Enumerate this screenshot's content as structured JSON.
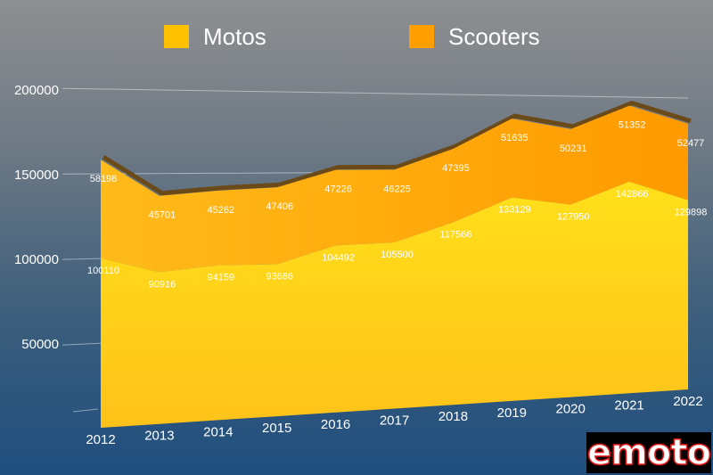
{
  "chart_data": {
    "type": "area",
    "stacked": true,
    "categories": [
      "2012",
      "2013",
      "2014",
      "2015",
      "2016",
      "2017",
      "2018",
      "2019",
      "2020",
      "2021",
      "2022"
    ],
    "series": [
      {
        "name": "Motos",
        "color": "#ffcc00",
        "values": [
          100110,
          90916,
          94159,
          93686,
          104492,
          105500,
          117566,
          133129,
          127950,
          142866,
          129898
        ]
      },
      {
        "name": "Scooters",
        "color": "#ff9f00",
        "values": [
          58198,
          45701,
          45262,
          47406,
          47226,
          46225,
          47395,
          51635,
          50231,
          51352,
          52477
        ]
      }
    ],
    "yticks": [
      "200000",
      "150000",
      "100000",
      "50000"
    ],
    "ylim": [
      0,
      200000
    ],
    "grid": true,
    "legend_position": "top"
  },
  "logo": {
    "text": "emoto"
  }
}
